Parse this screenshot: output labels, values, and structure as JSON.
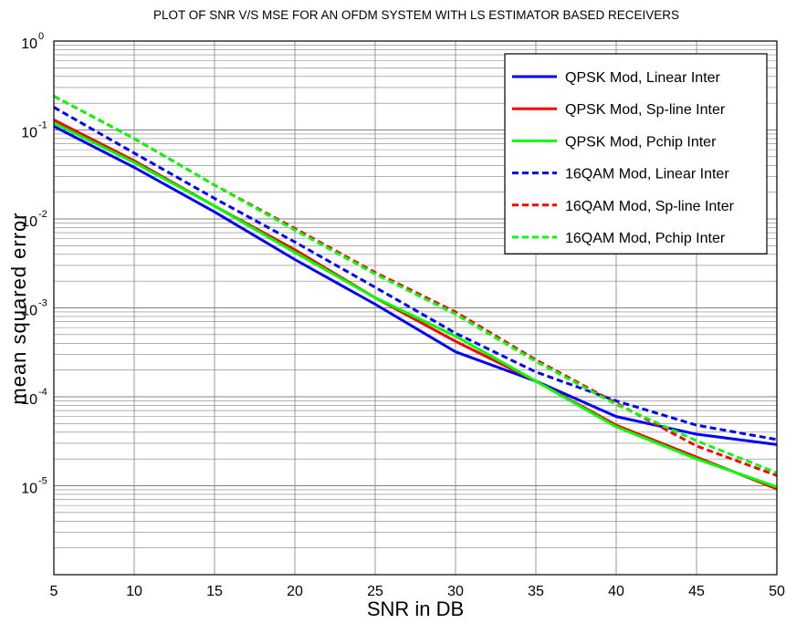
{
  "chart_data": {
    "type": "line",
    "title": "PLOT OF SNR V/S MSE FOR AN OFDM SYSTEM WITH LS ESTIMATOR BASED RECEIVERS",
    "xlabel": "SNR in DB",
    "ylabel": "mean squared error",
    "xlim": [
      5,
      50
    ],
    "ylim": [
      1e-06,
      1
    ],
    "yscale": "log",
    "grid": true,
    "legend_position": "top-right",
    "x_ticks": [
      "5",
      "10",
      "15",
      "20",
      "25",
      "30",
      "35",
      "40",
      "45",
      "50"
    ],
    "y_ticks": [
      {
        "base": "10",
        "exp": "0",
        "value": 1
      },
      {
        "base": "10",
        "exp": "-1",
        "value": 0.1
      },
      {
        "base": "10",
        "exp": "-2",
        "value": 0.01
      },
      {
        "base": "10",
        "exp": "-3",
        "value": 0.001
      },
      {
        "base": "10",
        "exp": "-4",
        "value": 0.0001
      },
      {
        "base": "10",
        "exp": "-5",
        "value": 1e-05
      }
    ],
    "x": [
      5,
      10,
      15,
      20,
      25,
      30,
      35,
      40,
      45,
      50
    ],
    "series": [
      {
        "name": "QPSK Mod, Linear Inter",
        "color": "#0000ff",
        "dash": "solid",
        "values": [
          0.11,
          0.038,
          0.012,
          0.0035,
          0.0011,
          0.00032,
          0.00015,
          6e-05,
          3.8e-05,
          2.9e-05
        ]
      },
      {
        "name": "QPSK Mod, Sp-line Inter",
        "color": "#ff0000",
        "dash": "solid",
        "values": [
          0.13,
          0.045,
          0.014,
          0.0045,
          0.0013,
          0.00042,
          0.00015,
          4.8e-05,
          2.1e-05,
          9.2e-06
        ]
      },
      {
        "name": "QPSK Mod, Pchip Inter",
        "color": "#00ff00",
        "dash": "solid",
        "values": [
          0.12,
          0.043,
          0.014,
          0.0042,
          0.0013,
          0.00048,
          0.00015,
          4.6e-05,
          2e-05,
          9.7e-06
        ]
      },
      {
        "name": "16QAM Mod, Linear Inter",
        "color": "#0000ff",
        "dash": "dashed",
        "values": [
          0.18,
          0.055,
          0.017,
          0.0055,
          0.0017,
          0.00052,
          0.00019,
          9e-05,
          4.8e-05,
          3.3e-05
        ]
      },
      {
        "name": "16QAM Mod, Sp-line Inter",
        "color": "#ff0000",
        "dash": "dashed",
        "values": [
          0.24,
          0.08,
          0.024,
          0.0078,
          0.0025,
          0.0009,
          0.00026,
          8.5e-05,
          2.8e-05,
          1.3e-05
        ]
      },
      {
        "name": "16QAM Mod, Pchip Inter",
        "color": "#00ff00",
        "dash": "dashed",
        "values": [
          0.24,
          0.08,
          0.024,
          0.0075,
          0.0024,
          0.00085,
          0.00025,
          8.2e-05,
          3.2e-05,
          1.4e-05
        ]
      }
    ]
  }
}
